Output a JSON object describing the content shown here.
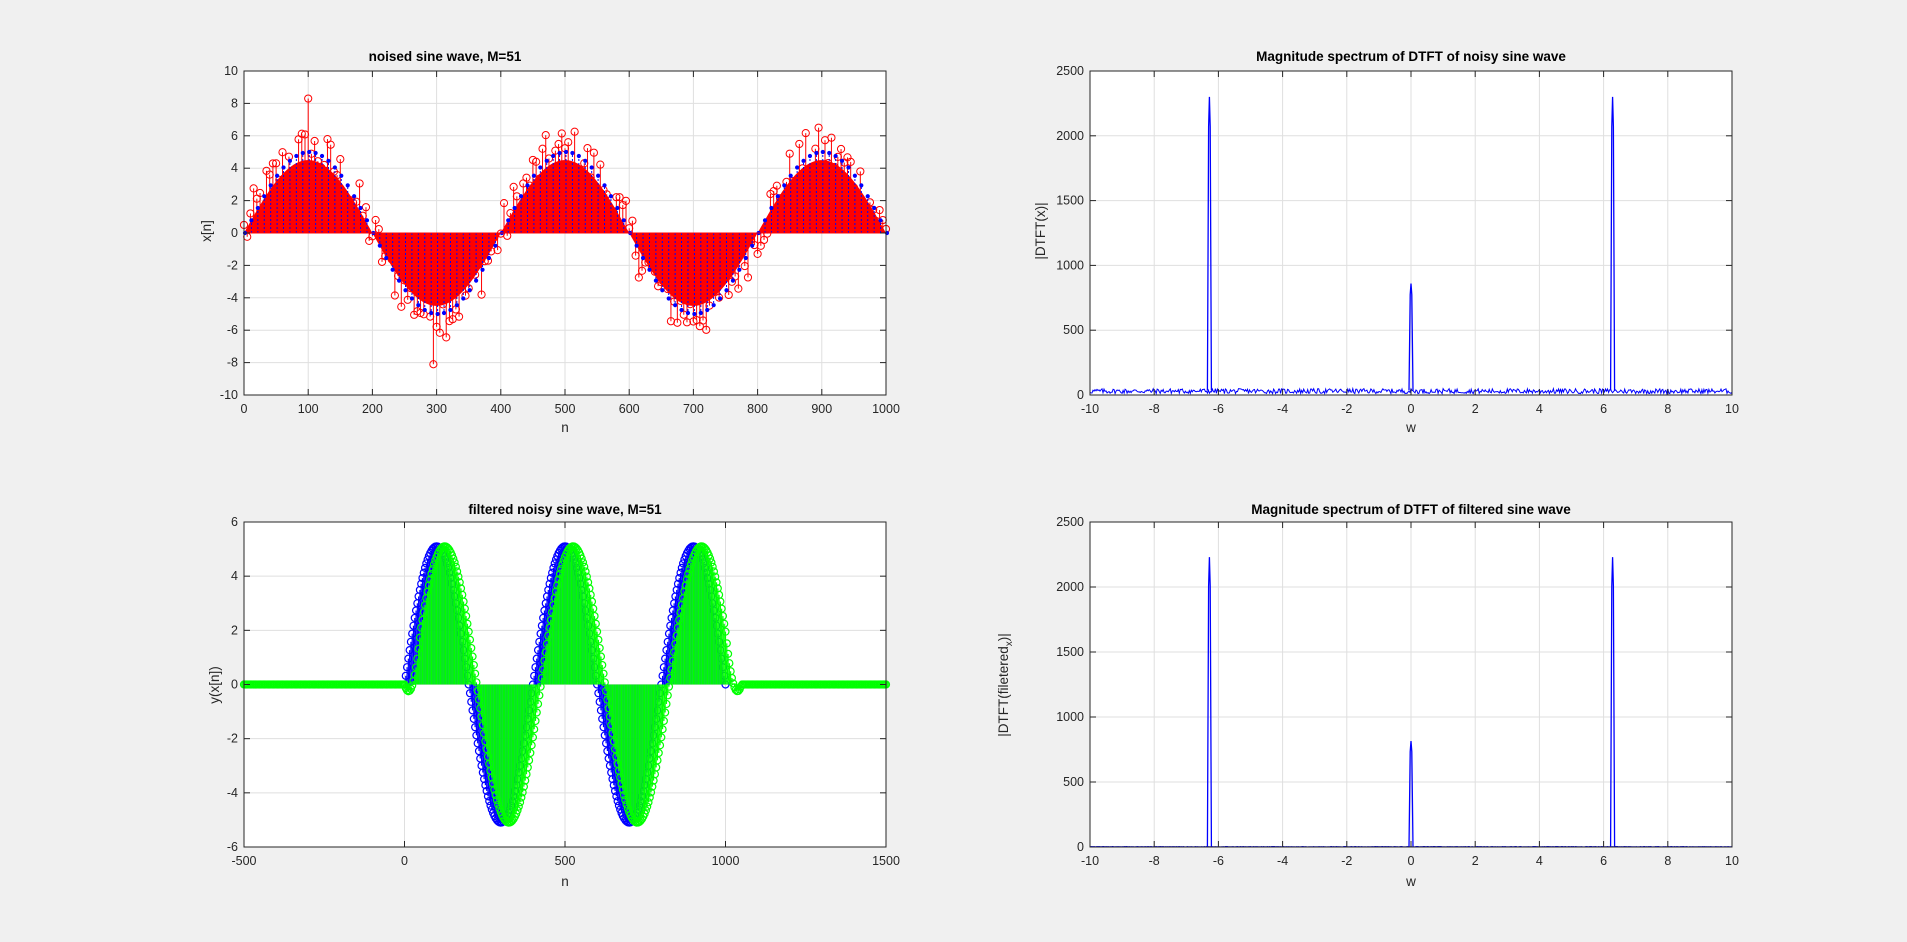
{
  "figure": {
    "background": "#f0f0f0"
  },
  "chart_data": [
    {
      "id": "p1",
      "type": "stem",
      "title": "noised sine wave, M=51",
      "xlabel": "n",
      "ylabel": "x[n]",
      "xlim": [
        0,
        1000
      ],
      "ylim": [
        -10,
        10
      ],
      "xticks": [
        0,
        100,
        200,
        300,
        400,
        500,
        600,
        700,
        800,
        900,
        1000
      ],
      "yticks": [
        -10,
        -8,
        -6,
        -4,
        -2,
        0,
        2,
        4,
        6,
        8,
        10
      ],
      "grid": true,
      "series": [
        {
          "name": "clean sine",
          "kind": "stem-dots",
          "color": "#0000ff",
          "amplitude": 5,
          "period": 400,
          "n_start": 0,
          "n_end": 1000,
          "step": 5
        },
        {
          "name": "noisy sine",
          "kind": "stem-circles",
          "color": "#ff0000",
          "amplitude": 5,
          "period": 400,
          "n_start": 0,
          "n_end": 1000,
          "step": 5,
          "noise_amplitude": 1.6,
          "extremes": {
            "max": 8.3,
            "min": -8.1
          }
        }
      ]
    },
    {
      "id": "p2",
      "type": "line",
      "title": "Magnitude spectrum of DTFT of noisy sine wave",
      "xlabel": "w",
      "ylabel": "|DTFT(x)|",
      "xlim": [
        -10,
        10
      ],
      "ylim": [
        0,
        2500
      ],
      "xticks": [
        -10,
        -8,
        -6,
        -4,
        -2,
        0,
        2,
        4,
        6,
        8,
        10
      ],
      "yticks": [
        0,
        500,
        1000,
        1500,
        2000,
        2500
      ],
      "grid": true,
      "series": [
        {
          "name": "|X(w)|",
          "color": "#0000ff",
          "noise_floor": 35,
          "peaks": [
            {
              "w": -6.28,
              "value": 2300
            },
            {
              "w": 0,
              "value": 860
            },
            {
              "w": 6.28,
              "value": 2300
            }
          ]
        }
      ]
    },
    {
      "id": "p3",
      "type": "stem",
      "title": "filtered noisy sine wave, M=51",
      "xlabel": "n",
      "ylabel": "y(x[n])",
      "xlim": [
        -500,
        1500
      ],
      "ylim": [
        -6,
        6
      ],
      "xticks": [
        -500,
        0,
        500,
        1000,
        1500
      ],
      "yticks": [
        -6,
        -4,
        -2,
        0,
        2,
        4,
        6
      ],
      "grid": true,
      "series": [
        {
          "name": "sine",
          "kind": "stem-circles",
          "color": "#0000ff",
          "amplitude": 5.1,
          "period": 400,
          "n_start": 0,
          "n_end": 1000,
          "step": 4
        },
        {
          "name": "filtered",
          "kind": "stem-circles",
          "color": "#00ff00",
          "amplitude": 5.1,
          "period": 400,
          "delay": 25,
          "n_start": -500,
          "n_end": 1500,
          "step": 4,
          "signal_start": 0,
          "signal_end": 1050
        }
      ]
    },
    {
      "id": "p4",
      "type": "line",
      "title": "Magnitude spectrum of DTFT of filtered sine wave",
      "xlabel": "w",
      "ylabel": "|DTFT(filetered_x)|",
      "ylabel_parts": {
        "main": "|DTFT(filetered",
        "sub": "x",
        "end": ")|"
      },
      "xlim": [
        -10,
        10
      ],
      "ylim": [
        0,
        2500
      ],
      "xticks": [
        -10,
        -8,
        -6,
        -4,
        -2,
        0,
        2,
        4,
        6,
        8,
        10
      ],
      "yticks": [
        0,
        500,
        1000,
        1500,
        2000,
        2500
      ],
      "grid": true,
      "series": [
        {
          "name": "|Y(w)|",
          "color": "#0000ff",
          "noise_floor": 3,
          "peaks": [
            {
              "w": -6.28,
              "value": 2230
            },
            {
              "w": 0,
              "value": 815
            },
            {
              "w": 6.28,
              "value": 2230
            }
          ]
        }
      ]
    }
  ]
}
